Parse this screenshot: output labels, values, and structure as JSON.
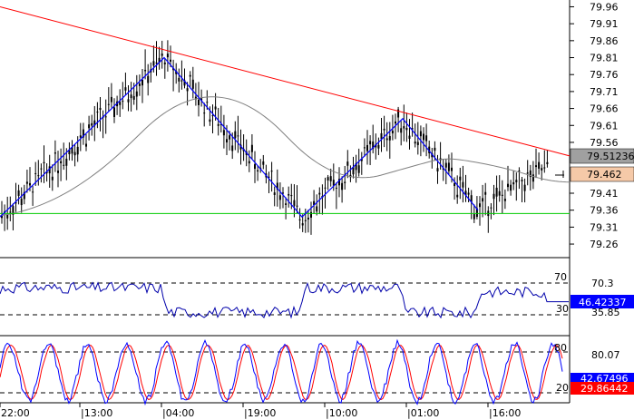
{
  "price_axis": {
    "ticks": [
      "79.96",
      "79.91",
      "79.86",
      "79.81",
      "79.76",
      "79.71",
      "79.66",
      "79.61",
      "79.56",
      "79.41",
      "79.36",
      "79.31",
      "79.26"
    ],
    "labels": {
      "ma_value": "79.512365",
      "last_price": "79.462"
    }
  },
  "time_axis": {
    "ticks": [
      "22:00",
      "|13:00",
      "|04:00",
      "|19:00",
      "|10:00",
      "|01:00",
      "|16:00"
    ]
  },
  "rsi": {
    "levels": [
      "70",
      "30"
    ],
    "scale": [
      "70.3",
      "35.85"
    ],
    "value": "46.42337"
  },
  "stochastic": {
    "levels": [
      "80",
      "20"
    ],
    "scale": [
      "80.07"
    ],
    "k_value": "42.67496",
    "d_value": "29.86442"
  },
  "colors": {
    "candles": "#000000",
    "trendline": "#ff0000",
    "zigzag": "#0000ff",
    "support": "#00cc00",
    "moving_average": "#808080",
    "rsi_line": "#0000aa",
    "stoch_k": "#0000ff",
    "stoch_d": "#ff0000",
    "ma_label_bg": "#a0a0a0",
    "price_label_bg": "#f5c9a8",
    "rsi_label_bg": "#0000ff",
    "stoch_d_label_bg": "#ff0000"
  },
  "chart_data": [
    {
      "type": "line",
      "name_hint": "main-price",
      "y_range": [
        79.22,
        79.98
      ],
      "zigzag": [
        [
          0,
          79.34
        ],
        [
          181,
          79.81
        ],
        [
          333,
          79.34
        ],
        [
          444,
          79.63
        ],
        [
          527,
          79.36
        ]
      ],
      "trendline": [
        [
          0,
          79.96
        ],
        [
          628,
          79.52
        ]
      ],
      "support_level": 79.35,
      "moving_average_value": 79.512365,
      "last_price": 79.462
    },
    {
      "type": "line",
      "name_hint": "rsi",
      "overbought": 70,
      "oversold": 30,
      "value": 46.42337
    },
    {
      "type": "line",
      "name_hint": "stochastic",
      "overbought": 80,
      "oversold": 20,
      "k": 42.67496,
      "d": 29.86442
    }
  ]
}
